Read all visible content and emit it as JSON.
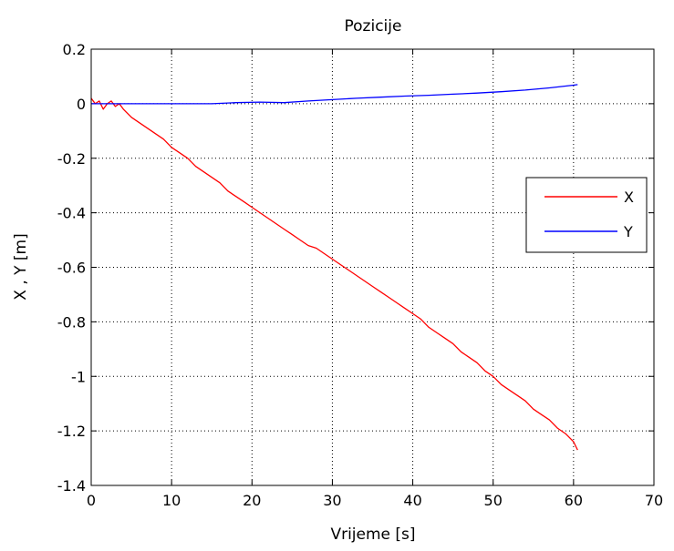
{
  "chart_data": {
    "type": "line",
    "title": "Pozicije",
    "xlabel": "Vrijeme [s]",
    "ylabel": "X , Y [m]",
    "xlim": [
      0,
      70
    ],
    "ylim": [
      -1.4,
      0.2
    ],
    "xticks": [
      0,
      10,
      20,
      30,
      40,
      50,
      60,
      70
    ],
    "yticks": [
      0.2,
      0,
      -0.2,
      -0.4,
      -0.6,
      -0.8,
      -1,
      -1.2,
      -1.4
    ],
    "xtick_labels": [
      "0",
      "10",
      "20",
      "30",
      "40",
      "50",
      "60",
      "70"
    ],
    "ytick_labels": [
      "0.2",
      "0",
      "-0.2",
      "-0.4",
      "-0.6",
      "-0.8",
      "-1",
      "-1.2",
      "-1.4"
    ],
    "grid": true,
    "legend_position": "right",
    "series": [
      {
        "name": "X",
        "color": "#ff0000",
        "x": [
          0,
          0.5,
          1,
          1.5,
          2,
          2.5,
          3,
          3.5,
          4,
          5,
          6,
          7,
          8,
          9,
          10,
          11,
          12,
          13,
          14,
          15,
          16,
          17,
          18,
          19,
          20,
          21,
          22,
          23,
          24,
          25,
          26,
          27,
          28,
          29,
          30,
          31,
          32,
          33,
          34,
          35,
          36,
          37,
          38,
          39,
          40,
          41,
          42,
          43,
          44,
          45,
          46,
          47,
          48,
          49,
          50,
          51,
          52,
          53,
          54,
          55,
          56,
          57,
          58,
          59,
          60,
          60.5
        ],
        "y": [
          0.02,
          0.0,
          0.01,
          -0.02,
          0.0,
          0.01,
          -0.01,
          0.0,
          -0.02,
          -0.05,
          -0.07,
          -0.09,
          -0.11,
          -0.13,
          -0.16,
          -0.18,
          -0.2,
          -0.23,
          -0.25,
          -0.27,
          -0.29,
          -0.32,
          -0.34,
          -0.36,
          -0.38,
          -0.4,
          -0.42,
          -0.44,
          -0.46,
          -0.48,
          -0.5,
          -0.52,
          -0.53,
          -0.55,
          -0.57,
          -0.59,
          -0.61,
          -0.63,
          -0.65,
          -0.67,
          -0.69,
          -0.71,
          -0.73,
          -0.75,
          -0.77,
          -0.79,
          -0.82,
          -0.84,
          -0.86,
          -0.88,
          -0.91,
          -0.93,
          -0.95,
          -0.98,
          -1.0,
          -1.03,
          -1.05,
          -1.07,
          -1.09,
          -1.12,
          -1.14,
          -1.16,
          -1.19,
          -1.21,
          -1.24,
          -1.27
        ]
      },
      {
        "name": "Y",
        "color": "#0000ff",
        "x": [
          0,
          3,
          6,
          9,
          12,
          15,
          18,
          21,
          24,
          27,
          30,
          33,
          36,
          39,
          42,
          45,
          48,
          51,
          54,
          57,
          60,
          60.5
        ],
        "y": [
          0.0,
          0.0,
          0.0,
          0.0,
          0.0,
          0.0,
          0.004,
          0.006,
          0.004,
          0.01,
          0.015,
          0.02,
          0.024,
          0.028,
          0.031,
          0.035,
          0.039,
          0.044,
          0.05,
          0.058,
          0.068,
          0.07
        ]
      }
    ]
  }
}
